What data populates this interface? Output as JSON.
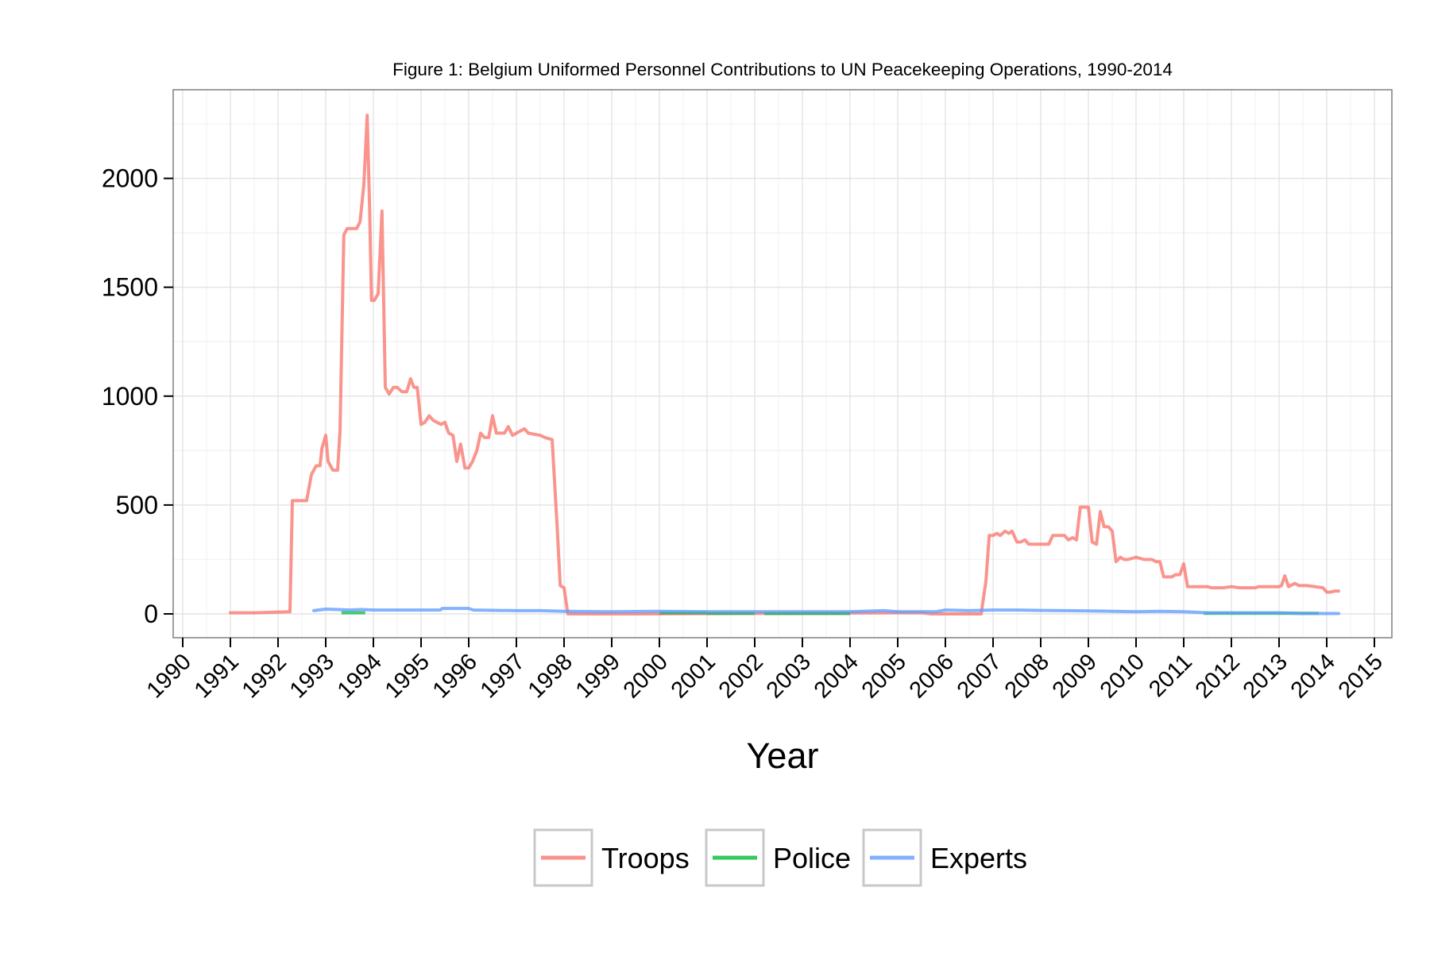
{
  "chart_data": {
    "type": "line",
    "title": "Figure 1: Belgium Uniformed Personnel Contributions to UN Peacekeeping Operations, 1990-2014",
    "xlabel": "Year",
    "ylabel": "",
    "xlim": [
      1990,
      2015
    ],
    "ylim": [
      -100,
      2410
    ],
    "x_ticks": [
      1990,
      1991,
      1992,
      1993,
      1994,
      1995,
      1996,
      1997,
      1998,
      1999,
      2000,
      2001,
      2002,
      2003,
      2004,
      2005,
      2006,
      2007,
      2008,
      2009,
      2010,
      2011,
      2012,
      2013,
      2014,
      2015
    ],
    "y_ticks": [
      0,
      500,
      1000,
      1500,
      2000
    ],
    "grid": true,
    "legend_position": "bottom",
    "series": [
      {
        "name": "Troops",
        "color": "#f8766d",
        "points": [
          [
            1991.0,
            5
          ],
          [
            1991.5,
            5
          ],
          [
            1992.0,
            8
          ],
          [
            1992.25,
            10
          ],
          [
            1992.3,
            520
          ],
          [
            1992.6,
            520
          ],
          [
            1992.7,
            640
          ],
          [
            1992.8,
            680
          ],
          [
            1992.88,
            680
          ],
          [
            1992.92,
            760
          ],
          [
            1993.0,
            820
          ],
          [
            1993.05,
            700
          ],
          [
            1993.15,
            660
          ],
          [
            1993.25,
            660
          ],
          [
            1993.3,
            840
          ],
          [
            1993.38,
            1740
          ],
          [
            1993.45,
            1770
          ],
          [
            1993.65,
            1770
          ],
          [
            1993.72,
            1800
          ],
          [
            1993.8,
            1970
          ],
          [
            1993.87,
            2290
          ],
          [
            1993.92,
            1870
          ],
          [
            1993.96,
            1440
          ],
          [
            1994.02,
            1440
          ],
          [
            1994.1,
            1470
          ],
          [
            1994.18,
            1850
          ],
          [
            1994.25,
            1040
          ],
          [
            1994.33,
            1010
          ],
          [
            1994.42,
            1040
          ],
          [
            1994.5,
            1040
          ],
          [
            1994.6,
            1020
          ],
          [
            1994.7,
            1020
          ],
          [
            1994.78,
            1080
          ],
          [
            1994.85,
            1040
          ],
          [
            1994.92,
            1040
          ],
          [
            1995.0,
            870
          ],
          [
            1995.08,
            880
          ],
          [
            1995.17,
            910
          ],
          [
            1995.25,
            890
          ],
          [
            1995.33,
            880
          ],
          [
            1995.42,
            870
          ],
          [
            1995.5,
            880
          ],
          [
            1995.58,
            830
          ],
          [
            1995.67,
            820
          ],
          [
            1995.75,
            700
          ],
          [
            1995.83,
            780
          ],
          [
            1995.92,
            670
          ],
          [
            1996.0,
            670
          ],
          [
            1996.08,
            700
          ],
          [
            1996.17,
            750
          ],
          [
            1996.25,
            830
          ],
          [
            1996.33,
            810
          ],
          [
            1996.42,
            810
          ],
          [
            1996.5,
            910
          ],
          [
            1996.58,
            830
          ],
          [
            1996.67,
            830
          ],
          [
            1996.75,
            830
          ],
          [
            1996.83,
            860
          ],
          [
            1996.92,
            820
          ],
          [
            1997.0,
            830
          ],
          [
            1997.17,
            850
          ],
          [
            1997.25,
            830
          ],
          [
            1997.5,
            820
          ],
          [
            1997.6,
            810
          ],
          [
            1997.75,
            800
          ],
          [
            1997.85,
            420
          ],
          [
            1997.92,
            130
          ],
          [
            1998.0,
            120
          ],
          [
            1998.08,
            0
          ],
          [
            1998.2,
            0
          ],
          [
            1999.6,
            0
          ],
          [
            1999.65,
            0
          ],
          [
            2005.0,
            5
          ],
          [
            2005.5,
            5
          ],
          [
            2005.7,
            0
          ],
          [
            2006.0,
            0
          ],
          [
            2006.5,
            0
          ],
          [
            2006.75,
            0
          ],
          [
            2006.85,
            150
          ],
          [
            2006.92,
            360
          ],
          [
            2007.0,
            360
          ],
          [
            2007.08,
            370
          ],
          [
            2007.15,
            360
          ],
          [
            2007.25,
            380
          ],
          [
            2007.33,
            370
          ],
          [
            2007.4,
            380
          ],
          [
            2007.5,
            330
          ],
          [
            2007.58,
            330
          ],
          [
            2007.67,
            340
          ],
          [
            2007.75,
            320
          ],
          [
            2007.83,
            320
          ],
          [
            2008.0,
            320
          ],
          [
            2008.17,
            320
          ],
          [
            2008.25,
            360
          ],
          [
            2008.33,
            360
          ],
          [
            2008.5,
            360
          ],
          [
            2008.58,
            340
          ],
          [
            2008.67,
            350
          ],
          [
            2008.75,
            340
          ],
          [
            2008.83,
            490
          ],
          [
            2008.92,
            490
          ],
          [
            2009.0,
            490
          ],
          [
            2009.08,
            330
          ],
          [
            2009.17,
            320
          ],
          [
            2009.25,
            470
          ],
          [
            2009.33,
            400
          ],
          [
            2009.42,
            400
          ],
          [
            2009.5,
            380
          ],
          [
            2009.58,
            240
          ],
          [
            2009.67,
            260
          ],
          [
            2009.75,
            250
          ],
          [
            2009.83,
            250
          ],
          [
            2010.0,
            260
          ],
          [
            2010.17,
            250
          ],
          [
            2010.33,
            250
          ],
          [
            2010.42,
            240
          ],
          [
            2010.5,
            240
          ],
          [
            2010.58,
            170
          ],
          [
            2010.75,
            170
          ],
          [
            2010.83,
            180
          ],
          [
            2010.92,
            180
          ],
          [
            2011.0,
            230
          ],
          [
            2011.08,
            125
          ],
          [
            2011.5,
            125
          ],
          [
            2011.58,
            120
          ],
          [
            2011.83,
            120
          ],
          [
            2012.0,
            125
          ],
          [
            2012.17,
            120
          ],
          [
            2012.5,
            120
          ],
          [
            2012.58,
            125
          ],
          [
            2013.0,
            125
          ],
          [
            2013.05,
            130
          ],
          [
            2013.12,
            175
          ],
          [
            2013.2,
            125
          ],
          [
            2013.33,
            140
          ],
          [
            2013.42,
            130
          ],
          [
            2013.58,
            130
          ],
          [
            2013.75,
            125
          ],
          [
            2013.92,
            120
          ],
          [
            2014.0,
            100
          ],
          [
            2014.08,
            100
          ],
          [
            2014.17,
            105
          ],
          [
            2014.25,
            105
          ]
        ]
      },
      {
        "name": "Police",
        "color": "#00ba38",
        "segments": [
          [
            [
              1993.33,
              5
            ],
            [
              1993.83,
              5
            ]
          ],
          [
            [
              1994.2,
              5
            ],
            [
              1994.2,
              5
            ]
          ],
          [
            [
              2000.0,
              5
            ],
            [
              2001.0,
              5
            ]
          ],
          [
            [
              2001.0,
              3
            ],
            [
              2002.0,
              3
            ]
          ],
          [
            [
              2002.2,
              2
            ],
            [
              2004.0,
              2
            ]
          ],
          [
            [
              2011.42,
              3
            ],
            [
              2013.83,
              3
            ]
          ]
        ]
      },
      {
        "name": "Experts",
        "color": "#619cff",
        "points": [
          [
            1992.75,
            15
          ],
          [
            1993.0,
            22
          ],
          [
            1993.25,
            20
          ],
          [
            1993.5,
            18
          ],
          [
            1993.75,
            20
          ],
          [
            1994.0,
            18
          ],
          [
            1994.5,
            18
          ],
          [
            1995.0,
            18
          ],
          [
            1995.4,
            18
          ],
          [
            1995.45,
            25
          ],
          [
            1995.75,
            25
          ],
          [
            1996.0,
            25
          ],
          [
            1996.1,
            18
          ],
          [
            1997.0,
            15
          ],
          [
            1997.5,
            15
          ],
          [
            1998.0,
            12
          ],
          [
            1999.0,
            10
          ],
          [
            2000.0,
            12
          ],
          [
            2001.0,
            10
          ],
          [
            2002.0,
            10
          ],
          [
            2003.0,
            10
          ],
          [
            2004.0,
            10
          ],
          [
            2004.7,
            15
          ],
          [
            2005.0,
            10
          ],
          [
            2005.5,
            10
          ],
          [
            2005.8,
            10
          ],
          [
            2006.0,
            18
          ],
          [
            2006.5,
            15
          ],
          [
            2007.0,
            18
          ],
          [
            2007.5,
            18
          ],
          [
            2008.0,
            16
          ],
          [
            2008.5,
            15
          ],
          [
            2009.0,
            14
          ],
          [
            2009.5,
            12
          ],
          [
            2010.0,
            10
          ],
          [
            2010.5,
            12
          ],
          [
            2011.0,
            10
          ],
          [
            2011.5,
            5
          ],
          [
            2012.0,
            5
          ],
          [
            2012.5,
            5
          ],
          [
            2013.0,
            5
          ],
          [
            2013.5,
            2
          ],
          [
            2014.0,
            2
          ],
          [
            2014.25,
            2
          ]
        ]
      }
    ]
  }
}
